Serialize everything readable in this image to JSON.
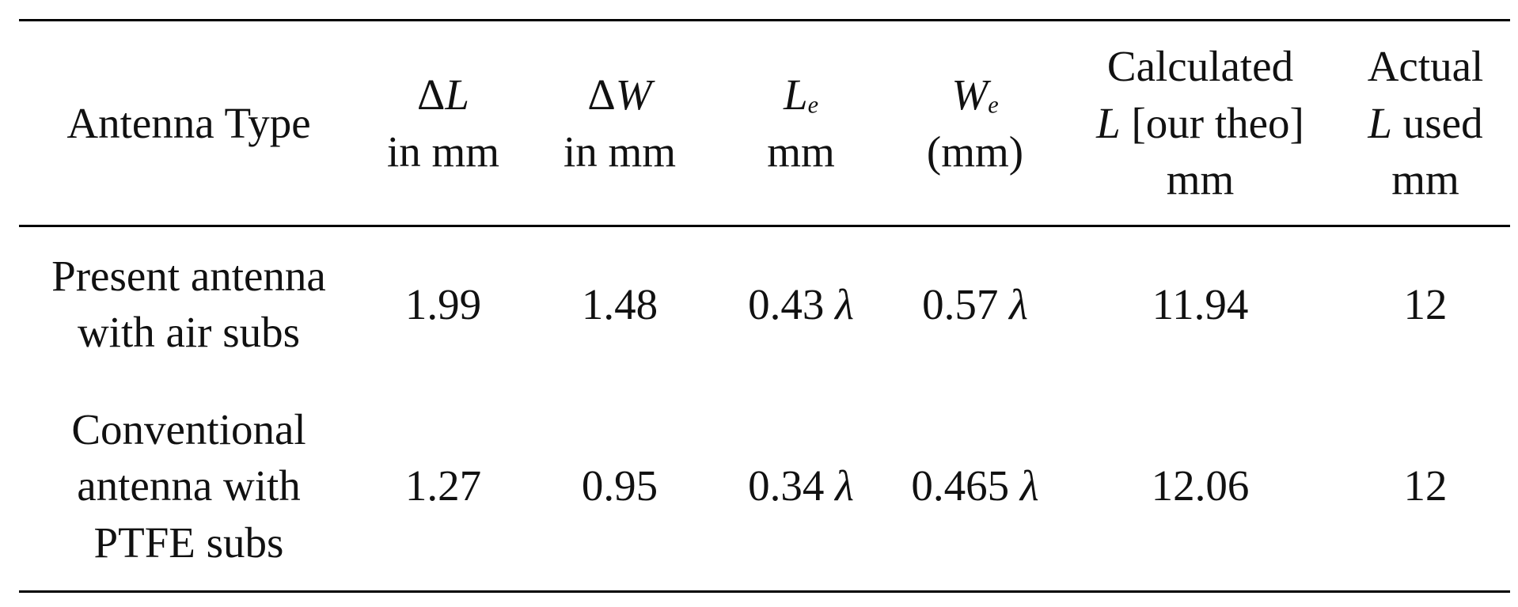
{
  "table": {
    "header": [
      [
        [
          {
            "text": "Antenna Type"
          }
        ]
      ],
      [
        [
          {
            "text": "Δ"
          },
          {
            "text": "L",
            "italic": true
          }
        ],
        [
          {
            "text": "in mm"
          }
        ]
      ],
      [
        [
          {
            "text": "Δ"
          },
          {
            "text": "W",
            "italic": true
          }
        ],
        [
          {
            "text": "in mm"
          }
        ]
      ],
      [
        [
          {
            "text": "L",
            "italic": true
          },
          {
            "text": "e",
            "italic": true,
            "sub": true
          }
        ],
        [
          {
            "text": "mm"
          }
        ]
      ],
      [
        [
          {
            "text": "W",
            "italic": true
          },
          {
            "text": "e",
            "italic": true,
            "sub": true
          }
        ],
        [
          {
            "text": "(mm)"
          }
        ]
      ],
      [
        [
          {
            "text": "Calculated"
          }
        ],
        [
          {
            "text": "L",
            "italic": true
          },
          {
            "text": " [our theo]"
          }
        ],
        [
          {
            "text": "mm"
          }
        ]
      ],
      [
        [
          {
            "text": "Actual"
          }
        ],
        [
          {
            "text": "L",
            "italic": true
          },
          {
            "text": " used"
          }
        ],
        [
          {
            "text": "mm"
          }
        ]
      ]
    ],
    "rows": [
      [
        [
          [
            {
              "text": "Present antenna"
            }
          ],
          [
            {
              "text": "with air subs"
            }
          ]
        ],
        [
          [
            {
              "text": "1.99"
            }
          ]
        ],
        [
          [
            {
              "text": "1.48"
            }
          ]
        ],
        [
          [
            {
              "text": "0.43 "
            },
            {
              "text": "λ",
              "italic": true
            }
          ]
        ],
        [
          [
            {
              "text": "0.57 "
            },
            {
              "text": "λ",
              "italic": true
            }
          ]
        ],
        [
          [
            {
              "text": "11.94"
            }
          ]
        ],
        [
          [
            {
              "text": "12"
            }
          ]
        ]
      ],
      [
        [
          [
            {
              "text": "Conventional"
            }
          ],
          [
            {
              "text": "antenna with"
            }
          ],
          [
            {
              "text": "PTFE subs"
            }
          ]
        ],
        [
          [
            {
              "text": "1.27"
            }
          ]
        ],
        [
          [
            {
              "text": "0.95"
            }
          ]
        ],
        [
          [
            {
              "text": "0.34 "
            },
            {
              "text": "λ",
              "italic": true
            }
          ]
        ],
        [
          [
            {
              "text": "0.465 "
            },
            {
              "text": "λ",
              "italic": true
            }
          ]
        ],
        [
          [
            {
              "text": "12.06"
            }
          ]
        ],
        [
          [
            {
              "text": "12"
            }
          ]
        ]
      ]
    ]
  }
}
